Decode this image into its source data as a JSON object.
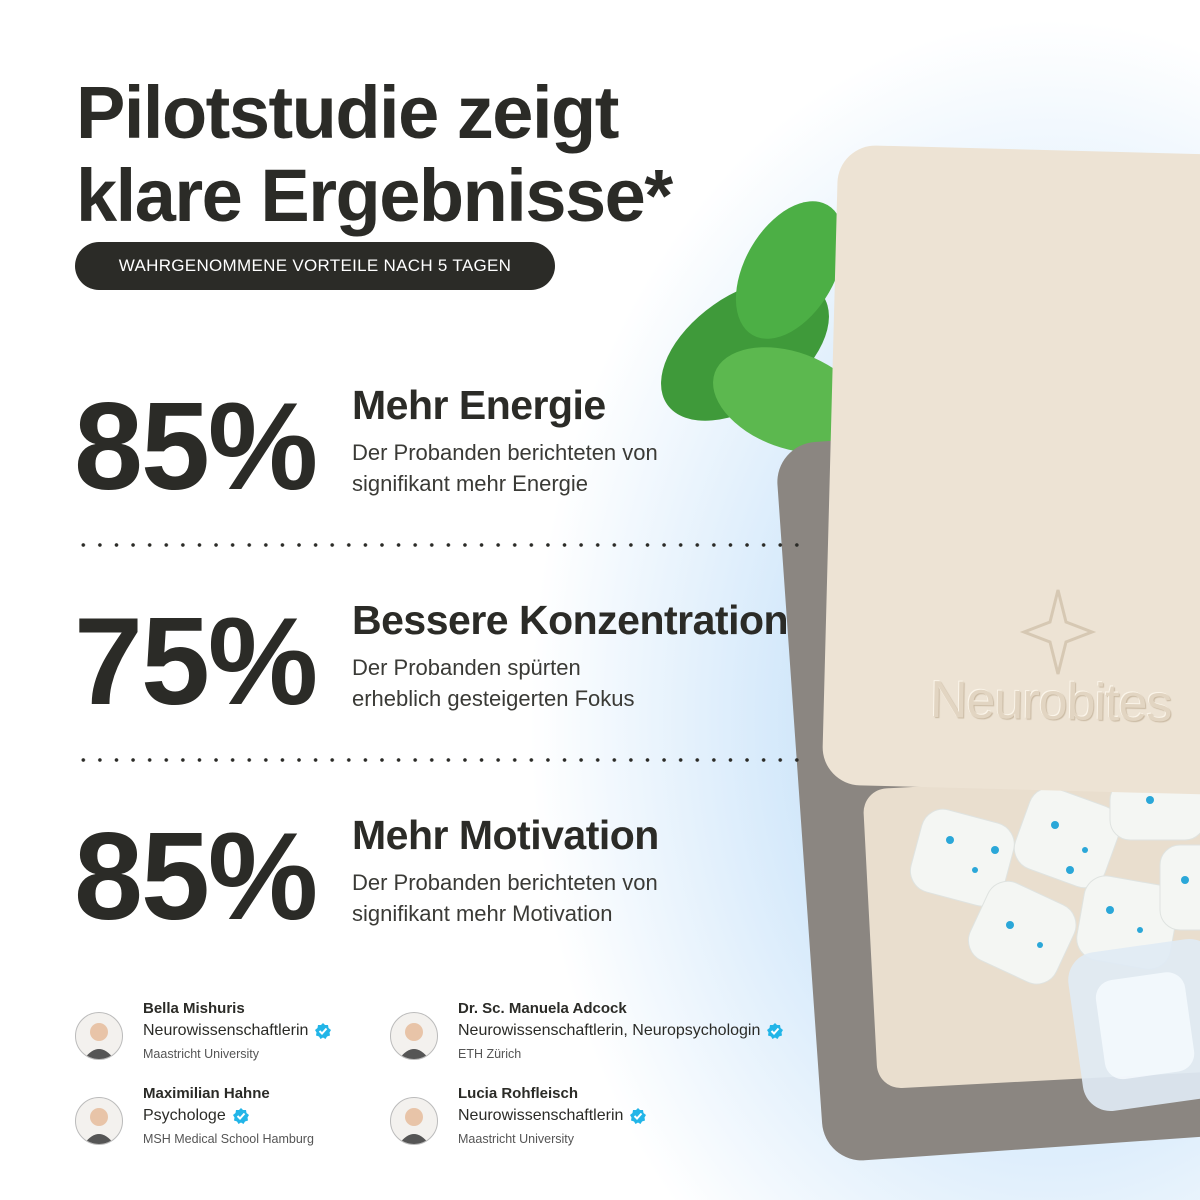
{
  "header": {
    "title_lines": [
      "Pilotstudie zeigt",
      "klare Ergebnisse*"
    ],
    "badge": "WAHRGENOMMENE VORTEILE NACH 5 TAGEN"
  },
  "stats": [
    {
      "value": "85%",
      "heading": "Mehr Energie",
      "description_lines": [
        "Der Probanden berichteten von",
        "signifikant mehr Energie"
      ]
    },
    {
      "value": "75%",
      "heading": "Bessere Konzentration",
      "description_lines": [
        "Der Probanden spürten",
        "erheblich gesteigerten Fokus"
      ]
    },
    {
      "value": "85%",
      "heading": "Mehr Motivation",
      "description_lines": [
        "Der Probanden berichteten von",
        "signifikant mehr Motivation"
      ]
    }
  ],
  "experts": [
    {
      "name": "Bella Mishuris",
      "role": "Neurowissenschaftlerin",
      "institution": "Maastricht University"
    },
    {
      "name": "Dr. Sc. Manuela Adcock",
      "role": "Neurowissenschaftlerin, Neuropsychologin",
      "institution": "ETH Zürich"
    },
    {
      "name": "Maximilian Hahne",
      "role": "Psychologe",
      "institution": "MSH Medical School Hamburg"
    },
    {
      "name": "Lucia Rohfleisch",
      "role": "Neurowissenschaftlerin",
      "institution": "Maastricht University"
    }
  ],
  "product": {
    "brand": "Neurobites"
  }
}
